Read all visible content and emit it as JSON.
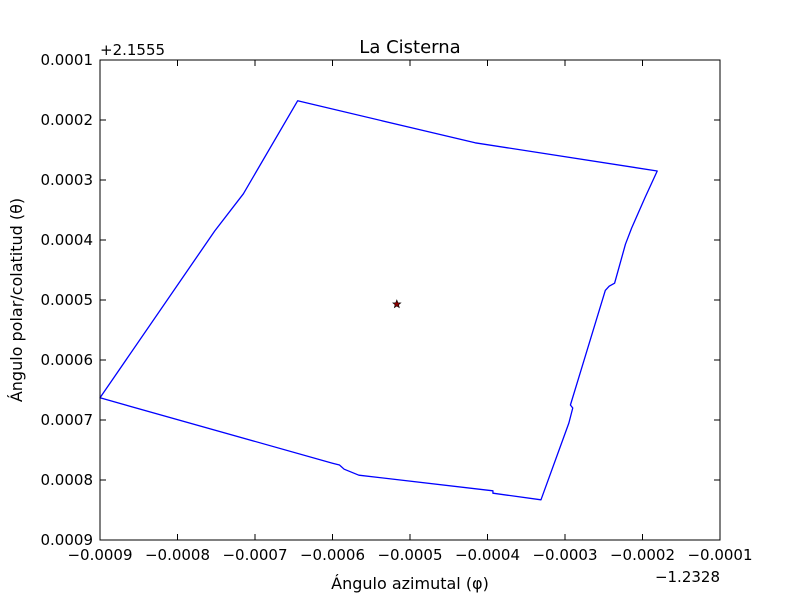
{
  "chart_data": {
    "type": "line",
    "title": "La Cisterna",
    "xlabel": "Ángulo azimutal (φ)",
    "ylabel": "Ángulo polar/colatitud (θ)",
    "x_offset_label": "−1.2328",
    "y_offset_label": "+2.1555",
    "xlim": [
      -0.0009,
      -0.0001
    ],
    "ylim": [
      0.0001,
      0.0009
    ],
    "y_inverted": true,
    "x_ticks": [
      -0.0009,
      -0.0008,
      -0.0007,
      -0.0006,
      -0.0005,
      -0.0004,
      -0.0003,
      -0.0002,
      -0.0001
    ],
    "x_tick_labels": [
      "−0.0009",
      "−0.0008",
      "−0.0007",
      "−0.0006",
      "−0.0005",
      "−0.0004",
      "−0.0003",
      "−0.0002",
      "−0.0001"
    ],
    "y_ticks": [
      0.0001,
      0.0002,
      0.0003,
      0.0004,
      0.0005,
      0.0006,
      0.0007,
      0.0008,
      0.0009
    ],
    "y_tick_labels": [
      "0.0001",
      "0.0002",
      "0.0003",
      "0.0004",
      "0.0005",
      "0.0006",
      "0.0007",
      "0.0008",
      "0.0009"
    ],
    "grid": false,
    "series": [
      {
        "kind": "polygon",
        "color": "#0000ff",
        "points": [
          [
            -0.000645,
            0.000168
          ],
          [
            -0.000416,
            0.000238
          ],
          [
            -0.000181,
            0.000285
          ],
          [
            -0.000197,
            0.00033
          ],
          [
            -0.000214,
            0.00038
          ],
          [
            -0.000222,
            0.000407
          ],
          [
            -0.000236,
            0.000472
          ],
          [
            -0.000243,
            0.000477
          ],
          [
            -0.000248,
            0.000484
          ],
          [
            -0.000293,
            0.000675
          ],
          [
            -0.00029,
            0.00068
          ],
          [
            -0.000295,
            0.000705
          ],
          [
            -0.000331,
            0.000833
          ],
          [
            -0.000393,
            0.000822
          ],
          [
            -0.000393,
            0.000818
          ],
          [
            -0.000566,
            0.000792
          ],
          [
            -0.000585,
            0.000782
          ],
          [
            -0.000591,
            0.000775
          ],
          [
            -0.0006,
            0.000772
          ],
          [
            -0.0009,
            0.000663
          ],
          [
            -0.000752,
            0.000385
          ],
          [
            -0.000715,
            0.000323
          ]
        ]
      },
      {
        "kind": "marker",
        "marker": "star",
        "color": "#8b0000",
        "edge_color": "#000000",
        "points": [
          [
            -0.000517,
            0.000507
          ]
        ]
      }
    ]
  }
}
